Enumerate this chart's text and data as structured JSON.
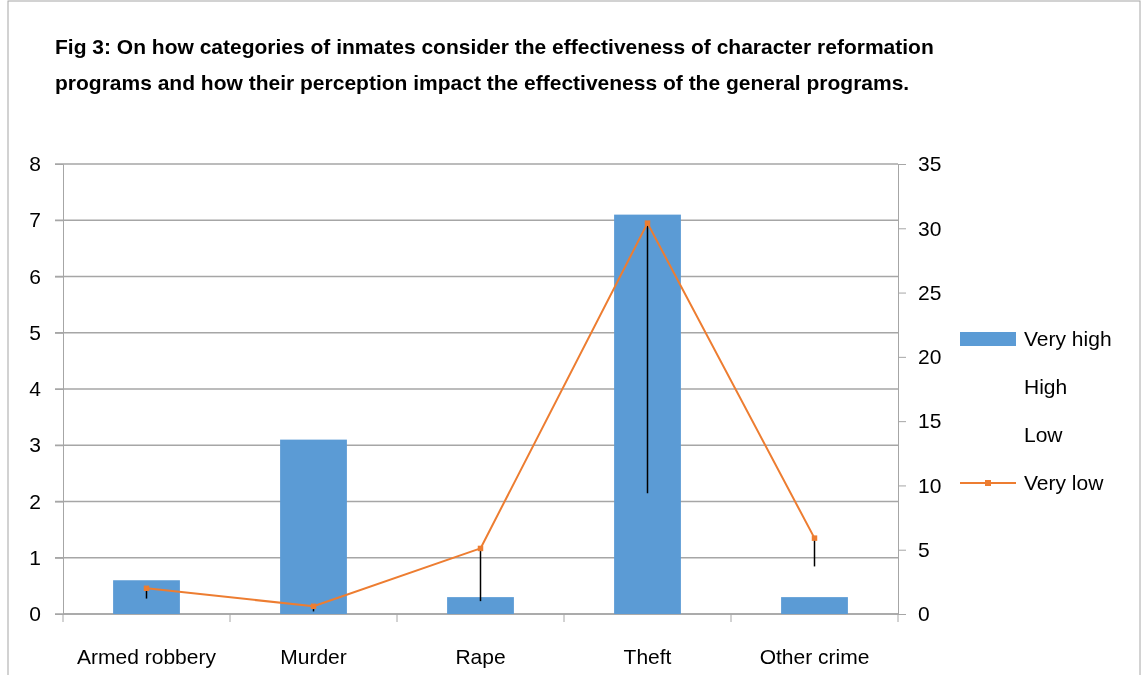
{
  "chart_data": {
    "type": "bar",
    "title": "Fig 3: On how categories of inmates consider the effectiveness of character reformation programs and how their perception impact the effectiveness of the general programs.",
    "categories": [
      "Armed robbery",
      "Murder",
      "Rape",
      "Theft",
      "Other crime"
    ],
    "series": [
      {
        "name": "Very high",
        "color": "#5b9bd5",
        "values": [
          0.6,
          3.1,
          0.3,
          7.1,
          0.3
        ]
      },
      {
        "name": "High",
        "type": "line",
        "values": [
          null,
          null,
          null,
          null,
          null
        ]
      },
      {
        "name": "Low",
        "type": "line",
        "values": [
          null,
          null,
          null,
          null,
          null
        ]
      },
      {
        "name": "Very low",
        "type": "line",
        "axis": "y2",
        "color": "#ed7d31",
        "values": [
          2.0,
          0.6,
          5.1,
          30.4,
          5.9
        ],
        "errors": [
          [
            1.2,
            2.0
          ],
          [
            0.2,
            0.6
          ],
          [
            1.0,
            5.1
          ],
          [
            9.4,
            30.4
          ],
          [
            3.7,
            5.9
          ]
        ]
      }
    ],
    "ylim": [
      0,
      8
    ],
    "yticks": [
      0,
      1,
      2,
      3,
      4,
      5,
      6,
      7,
      8
    ],
    "y2lim": [
      0,
      35
    ],
    "y2ticks": [
      0,
      5,
      10,
      15,
      20,
      25,
      30,
      35
    ],
    "grid": "y",
    "legend": "right",
    "marker": "square",
    "line_style": "solid"
  }
}
